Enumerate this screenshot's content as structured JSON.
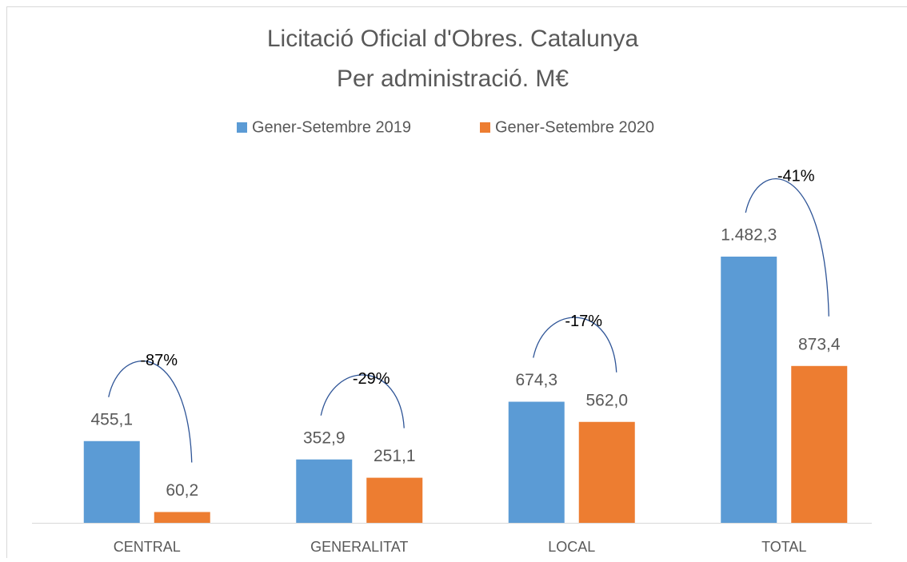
{
  "chart_data": {
    "type": "bar",
    "title": "Licitació Oficial d'Obres. Catalunya",
    "subtitle": "Per administració. M€",
    "categories": [
      "CENTRAL",
      "GENERALITAT",
      "LOCAL",
      "TOTAL"
    ],
    "series": [
      {
        "name": "Gener-Setembre 2019",
        "color": "#5b9bd5",
        "values": [
          455.1,
          352.9,
          674.3,
          1482.3
        ],
        "value_labels": [
          "455,1",
          "352,9",
          "674,3",
          "1.482,3"
        ]
      },
      {
        "name": "Gener-Setembre 2020",
        "color": "#ed7d31",
        "values": [
          60.2,
          251.1,
          562.0,
          873.4
        ],
        "value_labels": [
          "60,2",
          "251,1",
          "562,0",
          "873,4"
        ]
      }
    ],
    "annotations": [
      "-87%",
      "-29%",
      "-17%",
      "-41%"
    ],
    "legend": "top"
  }
}
